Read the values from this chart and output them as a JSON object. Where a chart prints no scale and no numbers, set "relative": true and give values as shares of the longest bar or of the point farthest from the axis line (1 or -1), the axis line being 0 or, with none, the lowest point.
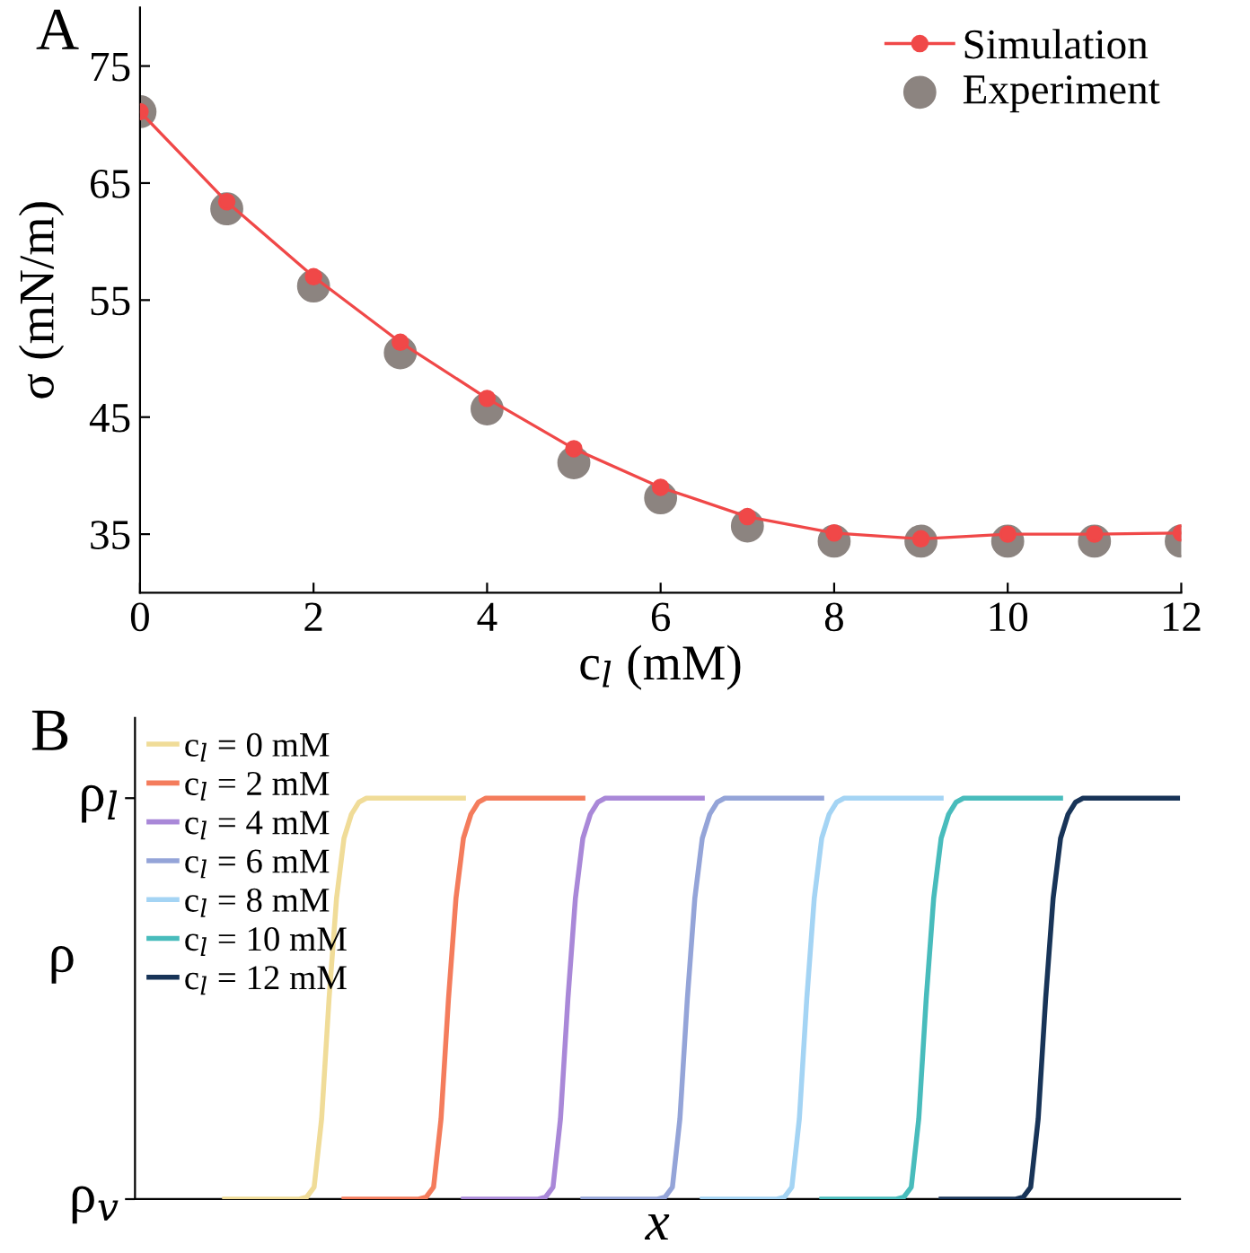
{
  "chart_data": [
    {
      "type": "line",
      "title": "A",
      "xlabel": "c$_{l}$ (mM)",
      "ylabel": "σ (mN/m)",
      "x": [
        0,
        1,
        2,
        3,
        4,
        5,
        6,
        7,
        8,
        9,
        10,
        11,
        12
      ],
      "xlim": [
        0,
        12
      ],
      "xticks": [
        0,
        2,
        4,
        6,
        8,
        10,
        12
      ],
      "ylim": [
        30,
        80
      ],
      "yticks": [
        35,
        45,
        55,
        65,
        75
      ],
      "legend": "top right",
      "grid": false,
      "series": [
        {
          "name": "Simulation",
          "type": "line",
          "marker": "circle",
          "color": "#f04848",
          "values": [
            71.1,
            63.4,
            57.0,
            51.4,
            46.6,
            42.3,
            39.0,
            36.5,
            35.1,
            34.6,
            35.0,
            35.0,
            35.1
          ]
        },
        {
          "name": "Experiment",
          "type": "scatter",
          "marker": "circle",
          "color": "#8c8480",
          "values": [
            71.1,
            62.8,
            56.2,
            50.5,
            45.7,
            41.1,
            38.1,
            35.7,
            34.4,
            34.4,
            34.4,
            34.4,
            34.4
          ]
        }
      ]
    },
    {
      "type": "line",
      "title": "B",
      "xlabel": "x",
      "ylabel": "ρ",
      "relative": true,
      "annotations": [
        "ρ$_{v}$",
        "ρ$_{l}$"
      ],
      "tick_labels": false,
      "legend": "top left",
      "grid": false,
      "line_style": "solid",
      "marker": "none",
      "categories": [
        null,
        null,
        null,
        null,
        null,
        null,
        null,
        null,
        null,
        null,
        null,
        null,
        null,
        null,
        null,
        null,
        null,
        null,
        null,
        null,
        null,
        null,
        null,
        null,
        null,
        null,
        null,
        null,
        null,
        null,
        null,
        null,
        null,
        null,
        null,
        null,
        null,
        null,
        null,
        null,
        null,
        null,
        null,
        null,
        null,
        null,
        null,
        null,
        null,
        null,
        null,
        null,
        null,
        null,
        null,
        null,
        null,
        null,
        null,
        null,
        null,
        null,
        null,
        null,
        null,
        null,
        null,
        null,
        null,
        null,
        null,
        null,
        null,
        null,
        null,
        null,
        null,
        null,
        null,
        null,
        null,
        null,
        null,
        null,
        null,
        null,
        null,
        null,
        null,
        null,
        null,
        null,
        null,
        null,
        null,
        null,
        null,
        null,
        null,
        null,
        null,
        null,
        null,
        null,
        null,
        null,
        null,
        null,
        null,
        null,
        null,
        null,
        null,
        null,
        null,
        null,
        null,
        null,
        null,
        null,
        null,
        null,
        null,
        null,
        null,
        null,
        null,
        null,
        null,
        null,
        null,
        null,
        null,
        null,
        null,
        null,
        null,
        null,
        null,
        null,
        null
      ],
      "series": [
        {
          "name": "c$_{l}$ = 0 mM",
          "color": "#f0dc98",
          "values": [
            null,
            null,
            null,
            null,
            null,
            null,
            null,
            null,
            null,
            null,
            null,
            null,
            0,
            0,
            0,
            0,
            0,
            0,
            0,
            0,
            0,
            0,
            0,
            0.005,
            0.03,
            0.2,
            0.5,
            0.75,
            0.9,
            0.96,
            0.99,
            1,
            1,
            1,
            1,
            1,
            1,
            1,
            1,
            1,
            1,
            1,
            1,
            1,
            1,
            null,
            null,
            null,
            null,
            null,
            null,
            null,
            null,
            null,
            null,
            null,
            null,
            null,
            null,
            null,
            null,
            null,
            null,
            null,
            null,
            null,
            null,
            null,
            null,
            null,
            null,
            null,
            null,
            null,
            null,
            null,
            null,
            null,
            null,
            null,
            null,
            null,
            null,
            null,
            null,
            null,
            null,
            null,
            null,
            null,
            null,
            null,
            null,
            null,
            null,
            null,
            null,
            null,
            null,
            null,
            null,
            null,
            null,
            null,
            null,
            null,
            null,
            null,
            null,
            null,
            null,
            null,
            null,
            null,
            null,
            null,
            null,
            null,
            null,
            null,
            null,
            null,
            null,
            null,
            null,
            null,
            null,
            null,
            null,
            null,
            null,
            null,
            null,
            null,
            null,
            null,
            null,
            null,
            null,
            null,
            null
          ]
        },
        {
          "name": "c$_{l}$ = 2 mM",
          "color": "#f47c5c",
          "values": [
            null,
            null,
            null,
            null,
            null,
            null,
            null,
            null,
            null,
            null,
            null,
            null,
            null,
            null,
            null,
            null,
            null,
            null,
            null,
            null,
            null,
            null,
            null,
            null,
            null,
            null,
            null,
            null,
            0,
            0,
            0,
            0,
            0,
            0,
            0,
            0,
            0,
            0,
            0,
            0.005,
            0.03,
            0.2,
            0.5,
            0.75,
            0.9,
            0.96,
            0.99,
            1,
            1,
            1,
            1,
            1,
            1,
            1,
            1,
            1,
            1,
            1,
            1,
            1,
            1,
            null,
            null,
            null,
            null,
            null,
            null,
            null,
            null,
            null,
            null,
            null,
            null,
            null,
            null,
            null,
            null,
            null,
            null,
            null,
            null,
            null,
            null,
            null,
            null,
            null,
            null,
            null,
            null,
            null,
            null,
            null,
            null,
            null,
            null,
            null,
            null,
            null,
            null,
            null,
            null,
            null,
            null,
            null,
            null,
            null,
            null,
            null,
            null,
            null,
            null,
            null,
            null,
            null,
            null,
            null,
            null,
            null,
            null,
            null,
            null,
            null,
            null,
            null,
            null,
            null,
            null,
            null,
            null,
            null,
            null,
            null,
            null,
            null,
            null,
            null,
            null,
            null,
            null,
            null,
            null
          ]
        },
        {
          "name": "c$_{l}$ = 4 mM",
          "color": "#a988d8",
          "values": [
            null,
            null,
            null,
            null,
            null,
            null,
            null,
            null,
            null,
            null,
            null,
            null,
            null,
            null,
            null,
            null,
            null,
            null,
            null,
            null,
            null,
            null,
            null,
            null,
            null,
            null,
            null,
            null,
            null,
            null,
            null,
            null,
            null,
            null,
            null,
            null,
            null,
            null,
            null,
            null,
            null,
            null,
            null,
            null,
            0,
            0,
            0,
            0,
            0,
            0,
            0,
            0,
            0,
            0,
            0,
            0.005,
            0.03,
            0.2,
            0.5,
            0.75,
            0.9,
            0.96,
            0.99,
            1,
            1,
            1,
            1,
            1,
            1,
            1,
            1,
            1,
            1,
            1,
            1,
            1,
            1,
            null,
            null,
            null,
            null,
            null,
            null,
            null,
            null,
            null,
            null,
            null,
            null,
            null,
            null,
            null,
            null,
            null,
            null,
            null,
            null,
            null,
            null,
            null,
            null,
            null,
            null,
            null,
            null,
            null,
            null,
            null,
            null,
            null,
            null,
            null,
            null,
            null,
            null,
            null,
            null,
            null,
            null,
            null,
            null,
            null,
            null,
            null,
            null,
            null,
            null,
            null,
            null,
            null,
            null,
            null,
            null,
            null,
            null,
            null,
            null,
            null,
            null,
            null,
            null
          ]
        },
        {
          "name": "c$_{l}$ = 6 mM",
          "color": "#94a4d8",
          "values": [
            null,
            null,
            null,
            null,
            null,
            null,
            null,
            null,
            null,
            null,
            null,
            null,
            null,
            null,
            null,
            null,
            null,
            null,
            null,
            null,
            null,
            null,
            null,
            null,
            null,
            null,
            null,
            null,
            null,
            null,
            null,
            null,
            null,
            null,
            null,
            null,
            null,
            null,
            null,
            null,
            null,
            null,
            null,
            null,
            null,
            null,
            null,
            null,
            null,
            null,
            null,
            null,
            null,
            null,
            null,
            null,
            null,
            null,
            null,
            null,
            0,
            0,
            0,
            0,
            0,
            0,
            0,
            0,
            0,
            0,
            0,
            0.005,
            0.03,
            0.2,
            0.5,
            0.75,
            0.9,
            0.96,
            0.99,
            1,
            1,
            1,
            1,
            1,
            1,
            1,
            1,
            1,
            1,
            1,
            1,
            1,
            1,
            null,
            null,
            null,
            null,
            null,
            null,
            null,
            null,
            null,
            null,
            null,
            null,
            null,
            null,
            null,
            null,
            null,
            null,
            null,
            null,
            null,
            null,
            null,
            null,
            null,
            null,
            null,
            null,
            null,
            null,
            null,
            null,
            null,
            null,
            null,
            null,
            null,
            null,
            null,
            null,
            null,
            null,
            null,
            null,
            null,
            null,
            null,
            null
          ]
        },
        {
          "name": "c$_{l}$ = 8 mM",
          "color": "#a4d4f4",
          "values": [
            null,
            null,
            null,
            null,
            null,
            null,
            null,
            null,
            null,
            null,
            null,
            null,
            null,
            null,
            null,
            null,
            null,
            null,
            null,
            null,
            null,
            null,
            null,
            null,
            null,
            null,
            null,
            null,
            null,
            null,
            null,
            null,
            null,
            null,
            null,
            null,
            null,
            null,
            null,
            null,
            null,
            null,
            null,
            null,
            null,
            null,
            null,
            null,
            null,
            null,
            null,
            null,
            null,
            null,
            null,
            null,
            null,
            null,
            null,
            null,
            null,
            null,
            null,
            null,
            null,
            null,
            null,
            null,
            null,
            null,
            null,
            null,
            null,
            null,
            null,
            null,
            0,
            0,
            0,
            0,
            0,
            0,
            0,
            0,
            0,
            0,
            0,
            0.005,
            0.03,
            0.2,
            0.5,
            0.75,
            0.9,
            0.96,
            0.99,
            1,
            1,
            1,
            1,
            1,
            1,
            1,
            1,
            1,
            1,
            1,
            1,
            1,
            1,
            null,
            null,
            null,
            null,
            null,
            null,
            null,
            null,
            null,
            null,
            null,
            null,
            null,
            null,
            null,
            null,
            null,
            null,
            null,
            null,
            null,
            null,
            null,
            null,
            null,
            null,
            null,
            null,
            null,
            null,
            null,
            null
          ]
        },
        {
          "name": "c$_{l}$ = 10 mM",
          "color": "#48bcbc",
          "values": [
            null,
            null,
            null,
            null,
            null,
            null,
            null,
            null,
            null,
            null,
            null,
            null,
            null,
            null,
            null,
            null,
            null,
            null,
            null,
            null,
            null,
            null,
            null,
            null,
            null,
            null,
            null,
            null,
            null,
            null,
            null,
            null,
            null,
            null,
            null,
            null,
            null,
            null,
            null,
            null,
            null,
            null,
            null,
            null,
            null,
            null,
            null,
            null,
            null,
            null,
            null,
            null,
            null,
            null,
            null,
            null,
            null,
            null,
            null,
            null,
            null,
            null,
            null,
            null,
            null,
            null,
            null,
            null,
            null,
            null,
            null,
            null,
            null,
            null,
            null,
            null,
            null,
            null,
            null,
            null,
            null,
            null,
            null,
            null,
            null,
            null,
            null,
            null,
            null,
            null,
            null,
            null,
            0,
            0,
            0,
            0,
            0,
            0,
            0,
            0,
            0,
            0,
            0,
            0.005,
            0.03,
            0.2,
            0.5,
            0.75,
            0.9,
            0.96,
            0.99,
            1,
            1,
            1,
            1,
            1,
            1,
            1,
            1,
            1,
            1,
            1,
            1,
            1,
            1,
            null,
            null,
            null,
            null,
            null,
            null,
            null,
            null,
            null,
            null,
            null,
            null,
            null,
            null,
            null,
            null
          ]
        },
        {
          "name": "c$_{l}$ = 12 mM",
          "color": "#183458",
          "values": [
            null,
            null,
            null,
            null,
            null,
            null,
            null,
            null,
            null,
            null,
            null,
            null,
            null,
            null,
            null,
            null,
            null,
            null,
            null,
            null,
            null,
            null,
            null,
            null,
            null,
            null,
            null,
            null,
            null,
            null,
            null,
            null,
            null,
            null,
            null,
            null,
            null,
            null,
            null,
            null,
            null,
            null,
            null,
            null,
            null,
            null,
            null,
            null,
            null,
            null,
            null,
            null,
            null,
            null,
            null,
            null,
            null,
            null,
            null,
            null,
            null,
            null,
            null,
            null,
            null,
            null,
            null,
            null,
            null,
            null,
            null,
            null,
            null,
            null,
            null,
            null,
            null,
            null,
            null,
            null,
            null,
            null,
            null,
            null,
            null,
            null,
            null,
            null,
            null,
            null,
            null,
            null,
            null,
            null,
            null,
            null,
            null,
            null,
            null,
            null,
            null,
            null,
            null,
            null,
            null,
            null,
            null,
            null,
            0,
            0,
            0,
            0,
            0,
            0,
            0,
            0,
            0,
            0,
            0,
            0.005,
            0.03,
            0.2,
            0.5,
            0.75,
            0.9,
            0.96,
            0.99,
            1,
            1,
            1,
            1,
            1,
            1,
            1,
            1,
            1,
            1,
            1,
            1,
            1,
            1
          ]
        }
      ]
    }
  ]
}
